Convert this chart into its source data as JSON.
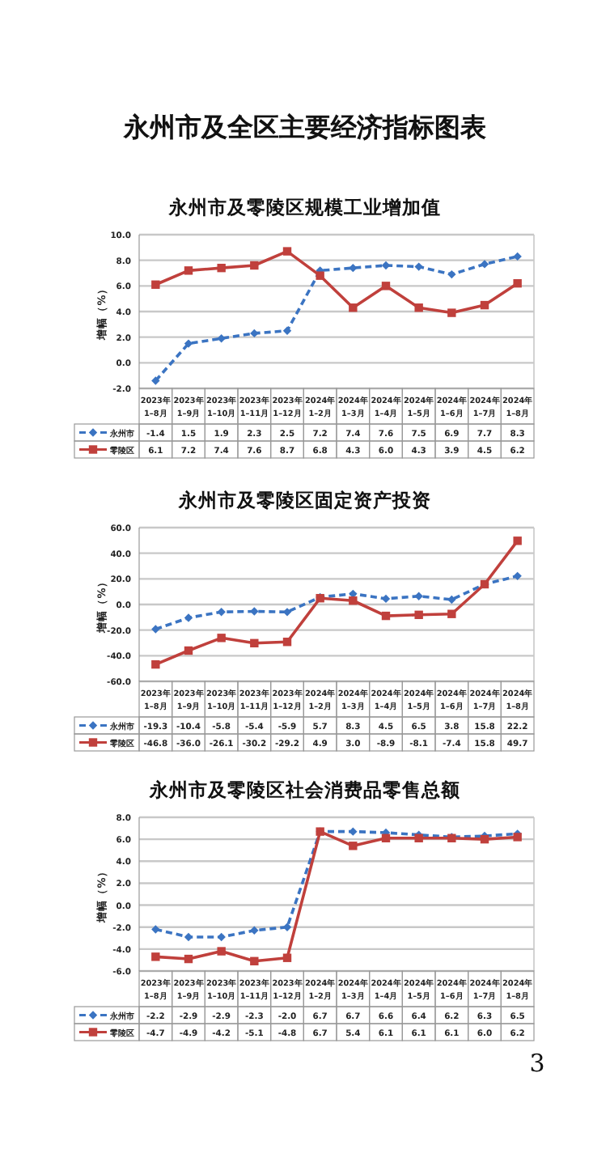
{
  "chart_data": [
    {
      "type": "line",
      "title": "永州市及零陵区规模工业增加值",
      "ylabel": "增幅（%）",
      "annotations": [
        "永州市及全区主要经济指标图表"
      ],
      "categories": [
        "2023年1–8月",
        "2023年1–9月",
        "2023年1–10月",
        "2023年1–11月",
        "2023年1–12月",
        "2024年1–2月",
        "2024年1–3月",
        "2024年1–4月",
        "2024年1–5月",
        "2024年1–6月",
        "2024年1–7月",
        "2024年1–8月"
      ],
      "ylim": [
        -2,
        10
      ],
      "yticks": [
        {
          "value": -2,
          "label": "-2.0"
        },
        {
          "value": 0,
          "label": "0.0"
        },
        {
          "value": 2,
          "label": "2.0"
        },
        {
          "value": 4,
          "label": "4.0"
        },
        {
          "value": 6,
          "label": "6.0"
        },
        {
          "value": 8,
          "label": "8.0"
        },
        {
          "value": 10,
          "label": "10.0"
        }
      ],
      "grid": "y",
      "legend": "bottom",
      "series": [
        {
          "name": "永州市",
          "color": "#3b74c2",
          "marker": "diamond",
          "line_style": "dashed",
          "values": [
            -1.4,
            1.5,
            1.9,
            2.3,
            2.5,
            7.2,
            7.4,
            7.6,
            7.5,
            6.9,
            7.7,
            8.3
          ],
          "value_labels": [
            "-1.4",
            "1.5",
            "1.9",
            "2.3",
            "2.5",
            "7.2",
            "7.4",
            "7.6",
            "7.5",
            "6.9",
            "7.7",
            "8.3"
          ]
        },
        {
          "name": "零陵区",
          "color": "#c0403c",
          "marker": "square",
          "line_style": "solid",
          "values": [
            6.1,
            7.2,
            7.4,
            7.6,
            8.7,
            6.8,
            4.3,
            6.0,
            4.3,
            3.9,
            4.5,
            6.2
          ],
          "value_labels": [
            "6.1",
            "7.2",
            "7.4",
            "7.6",
            "8.7",
            "6.8",
            "4.3",
            "6.0",
            "4.3",
            "3.9",
            "4.5",
            "6.2"
          ]
        }
      ]
    },
    {
      "type": "line",
      "title": "永州市及零陵区固定资产投资",
      "ylabel": "增幅（%）",
      "categories": [
        "2023年1–8月",
        "2023年1–9月",
        "2023年1–10月",
        "2023年1–11月",
        "2023年1–12月",
        "2024年1–2月",
        "2024年1–3月",
        "2024年1–4月",
        "2024年1–5月",
        "2024年1–6月",
        "2024年1–7月",
        "2024年1–8月"
      ],
      "ylim": [
        -60,
        60
      ],
      "yticks": [
        {
          "value": -60,
          "label": "-60.0"
        },
        {
          "value": -40,
          "label": "-40.0"
        },
        {
          "value": -20,
          "label": "-20.0"
        },
        {
          "value": 0,
          "label": "0.0"
        },
        {
          "value": 20,
          "label": "20.0"
        },
        {
          "value": 40,
          "label": "40.0"
        },
        {
          "value": 60,
          "label": "60.0"
        }
      ],
      "grid": "y",
      "legend": "bottom",
      "series": [
        {
          "name": "永州市",
          "color": "#3b74c2",
          "marker": "diamond",
          "line_style": "dashed",
          "values": [
            -19.3,
            -10.4,
            -5.8,
            -5.4,
            -5.9,
            5.7,
            8.3,
            4.5,
            6.5,
            3.8,
            15.8,
            22.2
          ],
          "value_labels": [
            "-19.3",
            "-10.4",
            "-5.8",
            "-5.4",
            "-5.9",
            "5.7",
            "8.3",
            "4.5",
            "6.5",
            "3.8",
            "15.8",
            "22.2"
          ]
        },
        {
          "name": "零陵区",
          "color": "#c0403c",
          "marker": "square",
          "line_style": "solid",
          "values": [
            -46.8,
            -36.0,
            -26.1,
            -30.2,
            -29.2,
            4.9,
            3.0,
            -8.9,
            -8.1,
            -7.4,
            15.8,
            49.7
          ],
          "value_labels": [
            "-46.8",
            "-36.0",
            "-26.1",
            "-30.2",
            "-29.2",
            "4.9",
            "3.0",
            "-8.9",
            "-8.1",
            "-7.4",
            "15.8",
            "49.7"
          ]
        }
      ]
    },
    {
      "type": "line",
      "title": "永州市及零陵区社会消费品零售总额",
      "ylabel": "增幅（%）",
      "annotations": [
        "3"
      ],
      "categories": [
        "2023年1–8月",
        "2023年1–9月",
        "2023年1–10月",
        "2023年1–11月",
        "2023年1–12月",
        "2024年1–2月",
        "2024年1–3月",
        "2024年1–4月",
        "2024年1–5月",
        "2024年1–6月",
        "2024年1–7月",
        "2024年1–8月"
      ],
      "ylim": [
        -6,
        8
      ],
      "yticks": [
        {
          "value": -6,
          "label": "-6.0"
        },
        {
          "value": -4,
          "label": "-4.0"
        },
        {
          "value": -2,
          "label": "-2.0"
        },
        {
          "value": 0,
          "label": "0.0"
        },
        {
          "value": 2,
          "label": "2.0"
        },
        {
          "value": 4,
          "label": "4.0"
        },
        {
          "value": 6,
          "label": "6.0"
        },
        {
          "value": 8,
          "label": "8.0"
        }
      ],
      "grid": "y",
      "legend": "bottom",
      "series": [
        {
          "name": "永州市",
          "color": "#3b74c2",
          "marker": "diamond",
          "line_style": "dashed",
          "values": [
            -2.2,
            -2.9,
            -2.9,
            -2.3,
            -2.0,
            6.7,
            6.7,
            6.6,
            6.4,
            6.2,
            6.3,
            6.5
          ],
          "value_labels": [
            "-2.2",
            "-2.9",
            "-2.9",
            "-2.3",
            "-2.0",
            "6.7",
            "6.7",
            "6.6",
            "6.4",
            "6.2",
            "6.3",
            "6.5"
          ]
        },
        {
          "name": "零陵区",
          "color": "#c0403c",
          "marker": "square",
          "line_style": "solid",
          "values": [
            -4.7,
            -4.9,
            -4.2,
            -5.1,
            -4.8,
            6.7,
            5.4,
            6.1,
            6.1,
            6.1,
            6.0,
            6.2
          ],
          "value_labels": [
            "-4.7",
            "-4.9",
            "-4.2",
            "-5.1",
            "-4.8",
            "6.7",
            "5.4",
            "6.1",
            "6.1",
            "6.1",
            "6.0",
            "6.2"
          ]
        }
      ]
    }
  ]
}
